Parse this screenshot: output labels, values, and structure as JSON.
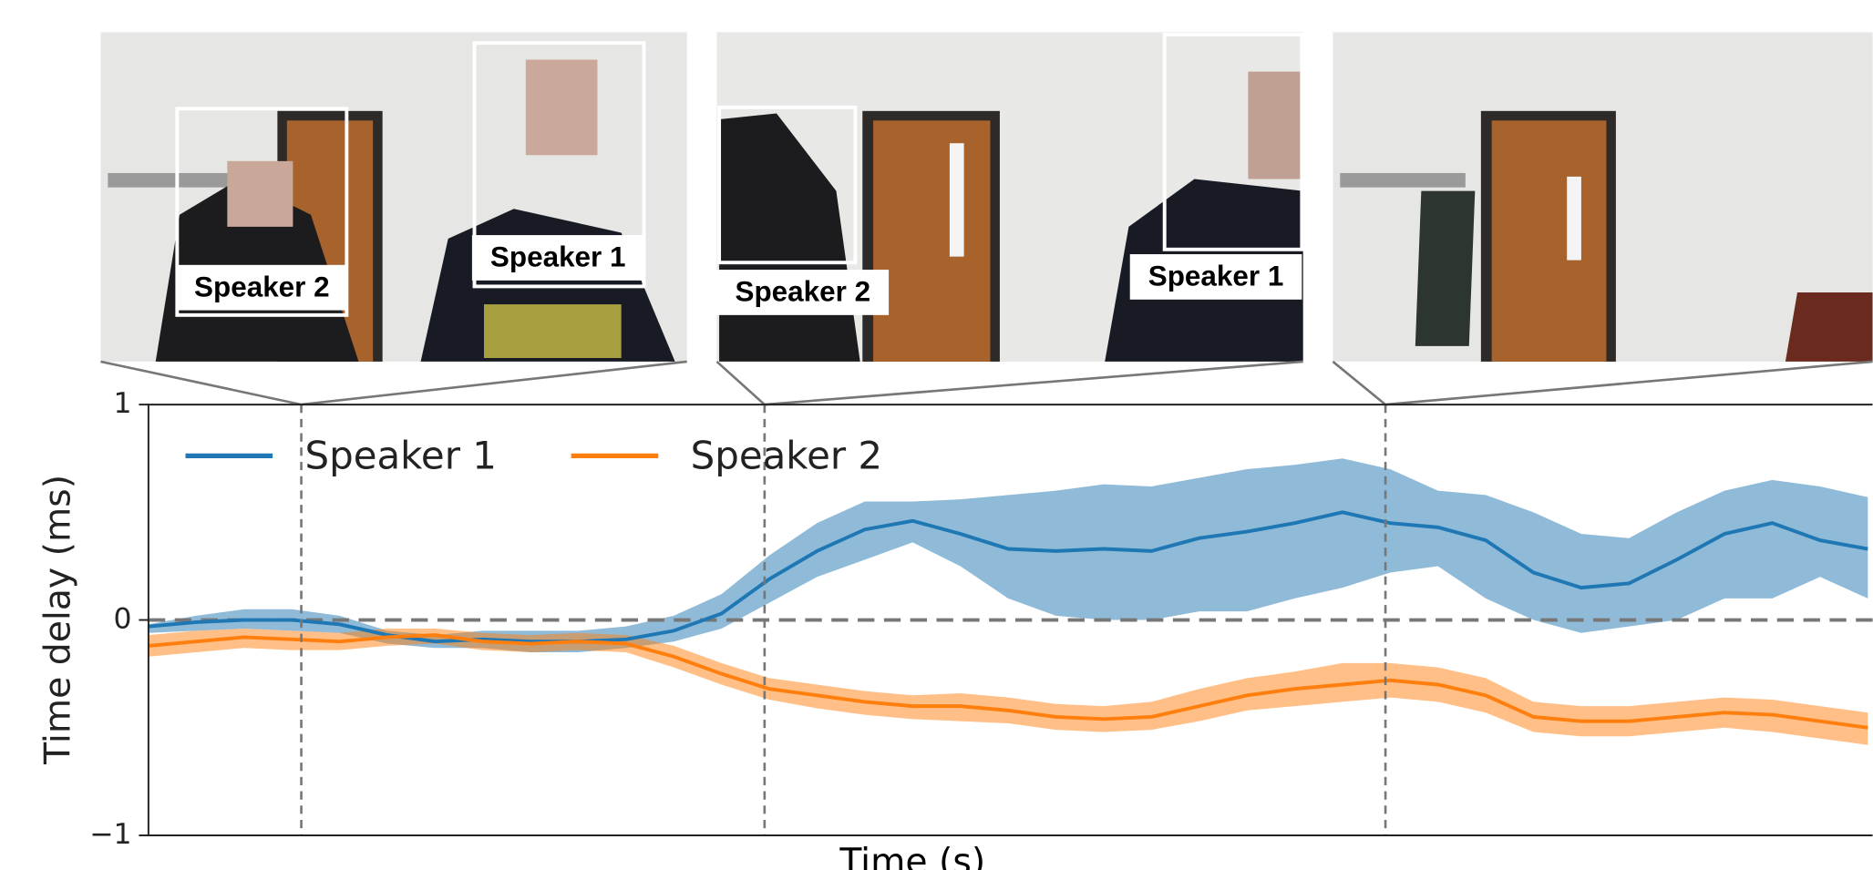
{
  "chart_data": {
    "type": "line",
    "x_label": "Time (s)",
    "y_label": "Time delay (ms)",
    "x": [
      0,
      1,
      2,
      3,
      4,
      5,
      6,
      7,
      8,
      9,
      10,
      11,
      12,
      13,
      14,
      15,
      16,
      17,
      18,
      19,
      20,
      21,
      22,
      23,
      24,
      25,
      26,
      27,
      28,
      29,
      30,
      31,
      32,
      33,
      34,
      35,
      36
    ],
    "xlim": [
      0,
      36
    ],
    "ylim": [
      -1,
      1
    ],
    "yticks": [
      {
        "value": -1,
        "label": "−1"
      },
      0,
      1
    ],
    "hline": 0,
    "vlines": [
      3.2,
      12.9,
      25.9
    ],
    "legend": "upper left",
    "series": [
      {
        "name": "Speaker 1",
        "color": "#1f77b4",
        "values": [
          -0.03,
          -0.01,
          0.0,
          0.0,
          -0.02,
          -0.07,
          -0.1,
          -0.09,
          -0.1,
          -0.1,
          -0.09,
          -0.05,
          0.03,
          0.19,
          0.32,
          0.42,
          0.46,
          0.4,
          0.33,
          0.32,
          0.33,
          0.32,
          0.38,
          0.41,
          0.45,
          0.5,
          0.45,
          0.43,
          0.37,
          0.22,
          0.15,
          0.17,
          0.28,
          0.4,
          0.45,
          0.37,
          0.33
        ],
        "upper": [
          -0.02,
          0.02,
          0.05,
          0.05,
          0.02,
          -0.05,
          -0.07,
          -0.05,
          -0.05,
          -0.05,
          -0.03,
          0.02,
          0.12,
          0.3,
          0.45,
          0.55,
          0.55,
          0.56,
          0.58,
          0.6,
          0.63,
          0.62,
          0.66,
          0.7,
          0.72,
          0.75,
          0.7,
          0.6,
          0.58,
          0.5,
          0.4,
          0.38,
          0.5,
          0.6,
          0.65,
          0.62,
          0.57
        ],
        "lower": [
          -0.06,
          -0.05,
          -0.04,
          -0.05,
          -0.06,
          -0.11,
          -0.13,
          -0.13,
          -0.15,
          -0.15,
          -0.13,
          -0.1,
          -0.04,
          0.08,
          0.2,
          0.28,
          0.36,
          0.25,
          0.1,
          0.02,
          0.0,
          0.0,
          0.04,
          0.04,
          0.1,
          0.15,
          0.22,
          0.25,
          0.1,
          0.0,
          -0.06,
          -0.03,
          0.0,
          0.1,
          0.1,
          0.2,
          0.1
        ]
      },
      {
        "name": "Speaker 2",
        "color": "#ff7f0e",
        "values": [
          -0.12,
          -0.1,
          -0.08,
          -0.09,
          -0.1,
          -0.08,
          -0.07,
          -0.1,
          -0.11,
          -0.1,
          -0.11,
          -0.17,
          -0.25,
          -0.32,
          -0.35,
          -0.38,
          -0.4,
          -0.4,
          -0.42,
          -0.45,
          -0.46,
          -0.45,
          -0.4,
          -0.35,
          -0.32,
          -0.3,
          -0.28,
          -0.3,
          -0.35,
          -0.45,
          -0.47,
          -0.47,
          -0.45,
          -0.43,
          -0.44,
          -0.47,
          -0.5
        ],
        "upper": [
          -0.07,
          -0.05,
          -0.04,
          -0.05,
          -0.06,
          -0.04,
          -0.04,
          -0.06,
          -0.07,
          -0.06,
          -0.07,
          -0.12,
          -0.2,
          -0.27,
          -0.3,
          -0.33,
          -0.35,
          -0.34,
          -0.36,
          -0.39,
          -0.4,
          -0.38,
          -0.32,
          -0.27,
          -0.24,
          -0.2,
          -0.2,
          -0.22,
          -0.27,
          -0.38,
          -0.4,
          -0.4,
          -0.38,
          -0.36,
          -0.37,
          -0.4,
          -0.43
        ],
        "lower": [
          -0.17,
          -0.15,
          -0.13,
          -0.14,
          -0.14,
          -0.12,
          -0.11,
          -0.14,
          -0.15,
          -0.14,
          -0.15,
          -0.22,
          -0.3,
          -0.37,
          -0.41,
          -0.44,
          -0.46,
          -0.47,
          -0.48,
          -0.51,
          -0.52,
          -0.51,
          -0.47,
          -0.42,
          -0.4,
          -0.38,
          -0.36,
          -0.38,
          -0.43,
          -0.52,
          -0.54,
          -0.54,
          -0.52,
          -0.5,
          -0.52,
          -0.55,
          -0.58
        ]
      }
    ],
    "annotations": [
      "Speaker 2",
      "Speaker 1",
      "Speaker 2",
      "Speaker 1"
    ]
  }
}
